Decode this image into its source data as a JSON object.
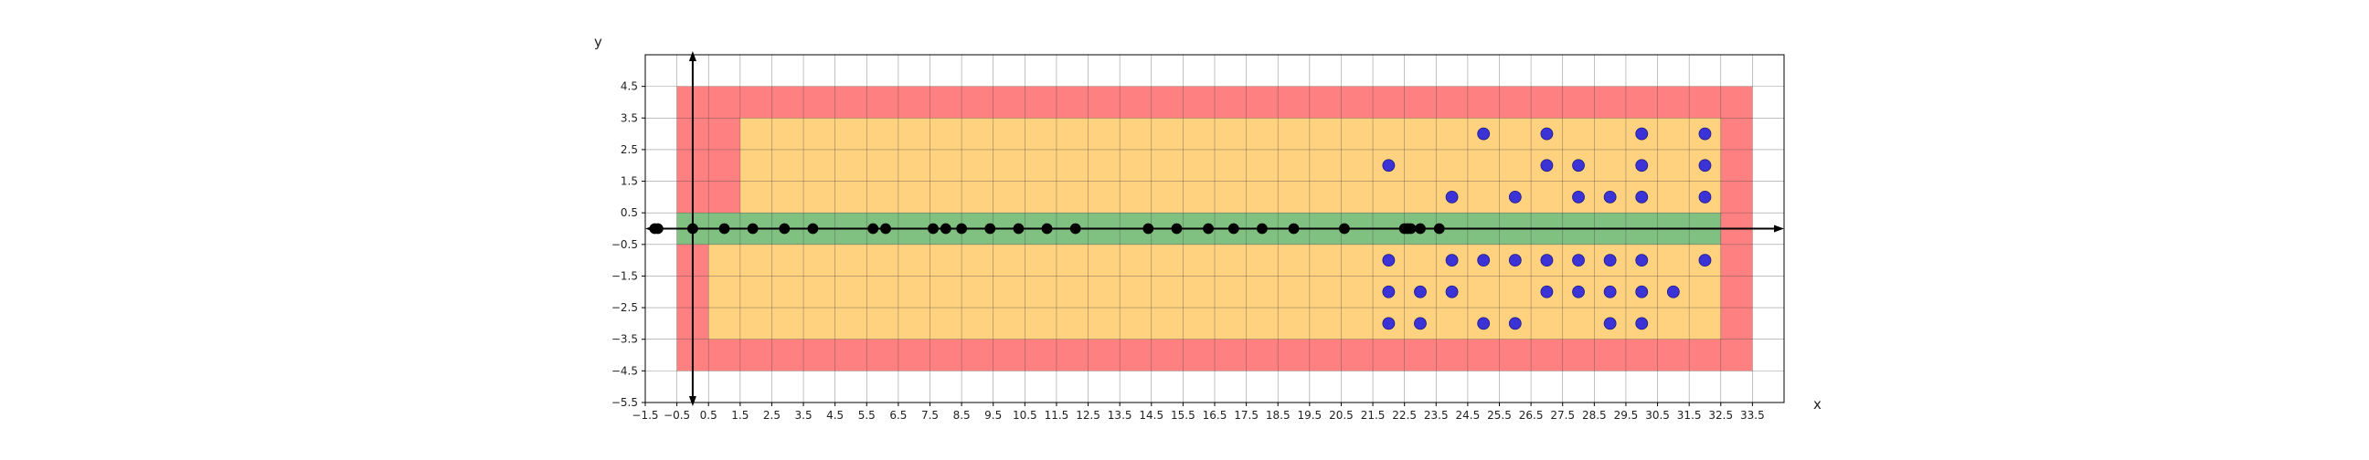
{
  "chart_data": {
    "type": "scatter",
    "title": "",
    "xlabel": "x",
    "ylabel": "y",
    "xlim": [
      -1.5,
      34.5
    ],
    "ylim": [
      -5.5,
      5.5
    ],
    "grid": true,
    "xticks": [
      -1.5,
      -0.5,
      0.5,
      1.5,
      2.5,
      3.5,
      4.5,
      5.5,
      6.5,
      7.5,
      8.5,
      9.5,
      10.5,
      11.5,
      12.5,
      13.5,
      14.5,
      15.5,
      16.5,
      17.5,
      18.5,
      19.5,
      20.5,
      21.5,
      22.5,
      23.5,
      24.5,
      25.5,
      26.5,
      27.5,
      28.5,
      29.5,
      30.5,
      31.5,
      32.5,
      33.5
    ],
    "xtick_labels": [
      "−1.5",
      "−0.5",
      "0.5",
      "1.5",
      "2.5",
      "3.5",
      "4.5",
      "5.5",
      "6.5",
      "7.5",
      "8.5",
      "9.5",
      "10.5",
      "11.5",
      "12.5",
      "13.5",
      "14.5",
      "15.5",
      "16.5",
      "17.5",
      "18.5",
      "19.5",
      "20.5",
      "21.5",
      "22.5",
      "23.5",
      "24.5",
      "25.5",
      "26.5",
      "27.5",
      "28.5",
      "29.5",
      "30.5",
      "31.5",
      "32.5",
      "33.5"
    ],
    "yticks": [
      4.5,
      3.5,
      2.5,
      1.5,
      0.5,
      -0.5,
      -1.5,
      -2.5,
      -3.5,
      -4.5,
      -5.5
    ],
    "ytick_labels": [
      "4.5",
      "3.5",
      "2.5",
      "1.5",
      "0.5",
      "−0.5",
      "−1.5",
      "−2.5",
      "−3.5",
      "−4.5",
      "−5.5"
    ],
    "regions": [
      {
        "label": "red",
        "color": "#ff8080",
        "x": [
          -0.5,
          33.5
        ],
        "y": [
          -4.5,
          4.5
        ]
      },
      {
        "label": "orange-top",
        "color": "#ffd280",
        "x": [
          1.5,
          32.5
        ],
        "y": [
          0.5,
          3.5
        ]
      },
      {
        "label": "orange-bottom",
        "color": "#ffd280",
        "x": [
          0.5,
          32.5
        ],
        "y": [
          -3.5,
          -0.5
        ]
      },
      {
        "label": "green",
        "color": "#80c080",
        "x": [
          -0.5,
          32.5
        ],
        "y": [
          -0.5,
          0.5
        ]
      }
    ],
    "series": [
      {
        "color": "#000000",
        "points": [
          [
            -1.2,
            0
          ],
          [
            -1.1,
            0
          ],
          [
            0,
            0
          ],
          [
            1,
            0
          ],
          [
            1.9,
            0
          ],
          [
            2.9,
            0
          ],
          [
            3.8,
            0
          ],
          [
            5.7,
            0
          ],
          [
            6.1,
            0
          ],
          [
            7.6,
            0
          ],
          [
            8,
            0
          ],
          [
            8.5,
            0
          ],
          [
            9.4,
            0
          ],
          [
            10.3,
            0
          ],
          [
            11.2,
            0
          ],
          [
            12.1,
            0
          ],
          [
            14.4,
            0
          ],
          [
            15.3,
            0
          ],
          [
            16.3,
            0
          ],
          [
            17.1,
            0
          ],
          [
            18,
            0
          ],
          [
            19,
            0
          ],
          [
            20.6,
            0
          ],
          [
            22.5,
            0
          ],
          [
            22.6,
            0
          ],
          [
            22.7,
            0
          ],
          [
            23,
            0
          ],
          [
            23.6,
            0
          ]
        ]
      },
      {
        "color": "#3b33d6",
        "points": [
          [
            25,
            3
          ],
          [
            27,
            3
          ],
          [
            30,
            3
          ],
          [
            32,
            3
          ],
          [
            22,
            2
          ],
          [
            27,
            2
          ],
          [
            28,
            2
          ],
          [
            30,
            2
          ],
          [
            32,
            2
          ],
          [
            24,
            1
          ],
          [
            26,
            1
          ],
          [
            28,
            1
          ],
          [
            29,
            1
          ],
          [
            30,
            1
          ],
          [
            32,
            1
          ],
          [
            22,
            -1
          ],
          [
            24,
            -1
          ],
          [
            25,
            -1
          ],
          [
            26,
            -1
          ],
          [
            27,
            -1
          ],
          [
            28,
            -1
          ],
          [
            29,
            -1
          ],
          [
            30,
            -1
          ],
          [
            32,
            -1
          ],
          [
            22,
            -2
          ],
          [
            23,
            -2
          ],
          [
            24,
            -2
          ],
          [
            27,
            -2
          ],
          [
            28,
            -2
          ],
          [
            29,
            -2
          ],
          [
            30,
            -2
          ],
          [
            31,
            -2
          ],
          [
            22,
            -3
          ],
          [
            23,
            -3
          ],
          [
            25,
            -3
          ],
          [
            26,
            -3
          ],
          [
            29,
            -3
          ],
          [
            30,
            -3
          ]
        ]
      }
    ]
  }
}
